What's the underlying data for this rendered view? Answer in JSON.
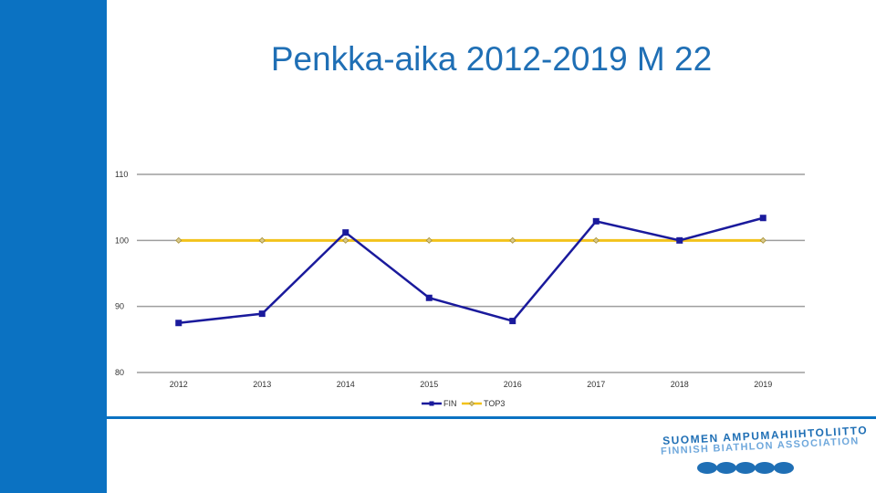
{
  "slide": {
    "title": "Penkka-aika 2012-2019 M 22",
    "accent_color": "#0b72c2",
    "title_color": "#1f6fb5"
  },
  "logo": {
    "line1": "SUOMEN AMPUMAHIIHTOLIITTO",
    "line2": "FINNISH BIATHLON ASSOCIATION",
    "dot_count": 5
  },
  "chart_data": {
    "type": "line",
    "title": "",
    "xlabel": "",
    "ylabel": "",
    "categories": [
      "2012",
      "2013",
      "2014",
      "2015",
      "2016",
      "2017",
      "2018",
      "2019"
    ],
    "ylim": [
      80,
      110
    ],
    "yticks": [
      80,
      90,
      100,
      110
    ],
    "grid": true,
    "legend_position": "bottom",
    "series": [
      {
        "name": "FIN",
        "color": "#1a1a9c",
        "marker": "square",
        "values": [
          87.5,
          88.9,
          101.2,
          91.3,
          87.8,
          102.9,
          100.0,
          103.4
        ]
      },
      {
        "name": "TOP3",
        "color": "#f2c21b",
        "marker": "diamond",
        "values": [
          100,
          100,
          100,
          100,
          100,
          100,
          100,
          100
        ]
      }
    ]
  }
}
